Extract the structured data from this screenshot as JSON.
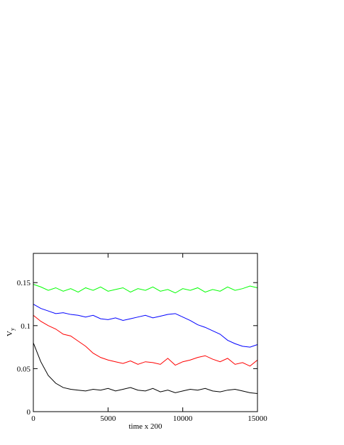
{
  "chart_data": {
    "type": "line",
    "xlabel": "time x 200",
    "ylabel": "V",
    "ylabel_sub": "y",
    "x": [
      0,
      500,
      1000,
      1500,
      2000,
      2500,
      3000,
      3500,
      4000,
      4500,
      5000,
      5500,
      6000,
      6500,
      7000,
      7500,
      8000,
      8500,
      9000,
      9500,
      10000,
      10500,
      11000,
      11500,
      12000,
      12500,
      13000,
      13500,
      14000,
      14500,
      15000
    ],
    "series": [
      {
        "color": "#000000",
        "values": [
          0.08,
          0.058,
          0.042,
          0.033,
          0.028,
          0.026,
          0.025,
          0.024,
          0.026,
          0.025,
          0.027,
          0.024,
          0.026,
          0.028,
          0.025,
          0.024,
          0.027,
          0.023,
          0.025,
          0.022,
          0.024,
          0.026,
          0.025,
          0.027,
          0.024,
          0.023,
          0.025,
          0.026,
          0.024,
          0.022,
          0.021
        ]
      },
      {
        "color": "#ff0000",
        "values": [
          0.112,
          0.105,
          0.1,
          0.096,
          0.09,
          0.088,
          0.082,
          0.076,
          0.068,
          0.063,
          0.06,
          0.058,
          0.056,
          0.059,
          0.055,
          0.058,
          0.057,
          0.055,
          0.062,
          0.054,
          0.058,
          0.06,
          0.063,
          0.065,
          0.061,
          0.058,
          0.062,
          0.055,
          0.057,
          0.053,
          0.06
        ]
      },
      {
        "color": "#0000ff",
        "values": [
          0.125,
          0.12,
          0.117,
          0.114,
          0.115,
          0.113,
          0.112,
          0.11,
          0.112,
          0.108,
          0.107,
          0.109,
          0.106,
          0.108,
          0.11,
          0.112,
          0.109,
          0.111,
          0.113,
          0.114,
          0.11,
          0.106,
          0.101,
          0.098,
          0.094,
          0.09,
          0.083,
          0.079,
          0.076,
          0.075,
          0.078
        ]
      },
      {
        "color": "#00ff00",
        "values": [
          0.148,
          0.145,
          0.141,
          0.144,
          0.14,
          0.143,
          0.139,
          0.144,
          0.141,
          0.145,
          0.14,
          0.142,
          0.144,
          0.139,
          0.143,
          0.141,
          0.145,
          0.14,
          0.142,
          0.138,
          0.143,
          0.141,
          0.144,
          0.139,
          0.142,
          0.14,
          0.145,
          0.141,
          0.143,
          0.146,
          0.144
        ]
      }
    ],
    "xlim": [
      0,
      15000
    ],
    "xticks": [
      0,
      5000,
      10000,
      15000
    ],
    "ylim": [
      0,
      0.184
    ],
    "yticks": [
      0,
      0.05,
      0.1,
      0.15
    ]
  }
}
